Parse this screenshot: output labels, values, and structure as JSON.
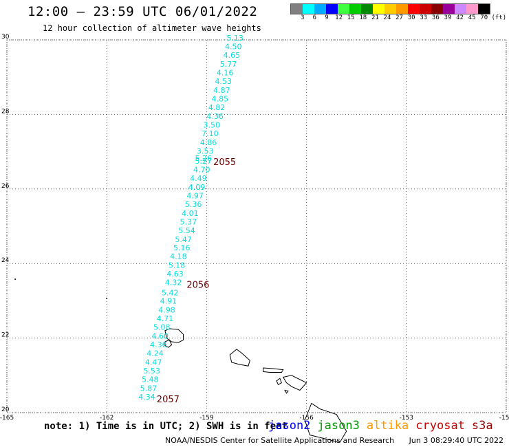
{
  "header": {
    "title": "12:00 — 23:59 UTC 06/01/2022",
    "subtitle": "12 hour collection of altimeter wave heights"
  },
  "legend": {
    "labels": [
      "3",
      "6",
      "9",
      "12",
      "15",
      "18",
      "21",
      "24",
      "27",
      "30",
      "33",
      "36",
      "39",
      "42",
      "45",
      "70"
    ],
    "unit": "(ft)",
    "colors": [
      "#808080",
      "#00ffff",
      "#00aaff",
      "#0000ff",
      "#40ff40",
      "#00cc00",
      "#008800",
      "#ffff00",
      "#ffcc00",
      "#ff9900",
      "#ff0000",
      "#cc0000",
      "#880000",
      "#990099",
      "#cc88ff",
      "#ff99cc",
      "#000000"
    ]
  },
  "map": {
    "lon_range": [
      -165,
      -150
    ],
    "lat_range": [
      20,
      30
    ],
    "x_ticks": [
      "-165",
      "-162",
      "-159",
      "-156",
      "-153",
      "-150"
    ],
    "y_ticks": [
      "30",
      "28",
      "26",
      "24",
      "22",
      "20"
    ],
    "swh_color": "#00dddd",
    "time_color": "#660000",
    "swh_values": [
      {
        "v": "5.13",
        "lon": -158.4,
        "lat": 29.98
      },
      {
        "v": "4.50",
        "lon": -158.45,
        "lat": 29.75
      },
      {
        "v": "4.65",
        "lon": -158.5,
        "lat": 29.52
      },
      {
        "v": "5.77",
        "lon": -158.6,
        "lat": 29.28
      },
      {
        "v": "4.16",
        "lon": -158.7,
        "lat": 29.05
      },
      {
        "v": "4.53",
        "lon": -158.75,
        "lat": 28.82
      },
      {
        "v": "4.87",
        "lon": -158.8,
        "lat": 28.58
      },
      {
        "v": "4.85",
        "lon": -158.85,
        "lat": 28.35
      },
      {
        "v": "4.82",
        "lon": -158.95,
        "lat": 28.12
      },
      {
        "v": "4.36",
        "lon": -159.0,
        "lat": 27.88
      },
      {
        "v": "3.50",
        "lon": -159.1,
        "lat": 27.65
      },
      {
        "v": "7.10",
        "lon": -159.15,
        "lat": 27.42
      },
      {
        "v": "4.86",
        "lon": -159.2,
        "lat": 27.18
      },
      {
        "v": "3.53",
        "lon": -159.3,
        "lat": 26.95
      },
      {
        "v": "5.26",
        "lon": -159.35,
        "lat": 26.75
      },
      {
        "v": "5.27",
        "lon": -159.35,
        "lat": 26.68
      },
      {
        "v": "4.70",
        "lon": -159.4,
        "lat": 26.45
      },
      {
        "v": "4.49",
        "lon": -159.5,
        "lat": 26.22
      },
      {
        "v": "4.09",
        "lon": -159.55,
        "lat": 25.98
      },
      {
        "v": "4.97",
        "lon": -159.6,
        "lat": 25.75
      },
      {
        "v": "5.36",
        "lon": -159.65,
        "lat": 25.52
      },
      {
        "v": "4.01",
        "lon": -159.75,
        "lat": 25.28
      },
      {
        "v": "5.37",
        "lon": -159.8,
        "lat": 25.05
      },
      {
        "v": "5.54",
        "lon": -159.85,
        "lat": 24.82
      },
      {
        "v": "5.47",
        "lon": -159.95,
        "lat": 24.58
      },
      {
        "v": "5.16",
        "lon": -160.0,
        "lat": 24.35
      },
      {
        "v": "4.18",
        "lon": -160.1,
        "lat": 24.12
      },
      {
        "v": "5.18",
        "lon": -160.15,
        "lat": 23.88
      },
      {
        "v": "4.63",
        "lon": -160.2,
        "lat": 23.65
      },
      {
        "v": "4.32",
        "lon": -160.25,
        "lat": 23.42
      },
      {
        "v": "5.42",
        "lon": -160.35,
        "lat": 23.15
      },
      {
        "v": "4.91",
        "lon": -160.4,
        "lat": 22.92
      },
      {
        "v": "4.98",
        "lon": -160.45,
        "lat": 22.68
      },
      {
        "v": "4.71",
        "lon": -160.5,
        "lat": 22.45
      },
      {
        "v": "5.08",
        "lon": -160.6,
        "lat": 22.22
      },
      {
        "v": "4.60",
        "lon": -160.65,
        "lat": 21.98
      },
      {
        "v": "4.36",
        "lon": -160.7,
        "lat": 21.75
      },
      {
        "v": "4.24",
        "lon": -160.8,
        "lat": 21.52
      },
      {
        "v": "4.47",
        "lon": -160.85,
        "lat": 21.28
      },
      {
        "v": "5.53",
        "lon": -160.9,
        "lat": 21.05
      },
      {
        "v": "5.48",
        "lon": -160.95,
        "lat": 20.82
      },
      {
        "v": "5.87",
        "lon": -161.0,
        "lat": 20.58
      },
      {
        "v": "4.34",
        "lon": -161.05,
        "lat": 20.35
      }
    ],
    "times": [
      {
        "t": "2055",
        "lon": -158.8,
        "lat": 26.72
      },
      {
        "t": "2056",
        "lon": -159.6,
        "lat": 23.42
      },
      {
        "t": "2057",
        "lon": -160.5,
        "lat": 20.35
      }
    ]
  },
  "note": "note: 1) Time is in UTC; 2) SWH is in feet",
  "satellites": [
    {
      "name": "jason2",
      "color": "#0000ff"
    },
    {
      "name": "jason3",
      "color": "#009900"
    },
    {
      "name": "altika",
      "color": "#ff9900"
    },
    {
      "name": "cryosat",
      "color": "#cc0000"
    },
    {
      "name": "s3a",
      "color": "#990000"
    }
  ],
  "footer": {
    "credit": "NOAA/NESDIS Center for Satellite Applications and Research",
    "timestamp": "Jun  3 08:29:40 UTC 2022"
  }
}
